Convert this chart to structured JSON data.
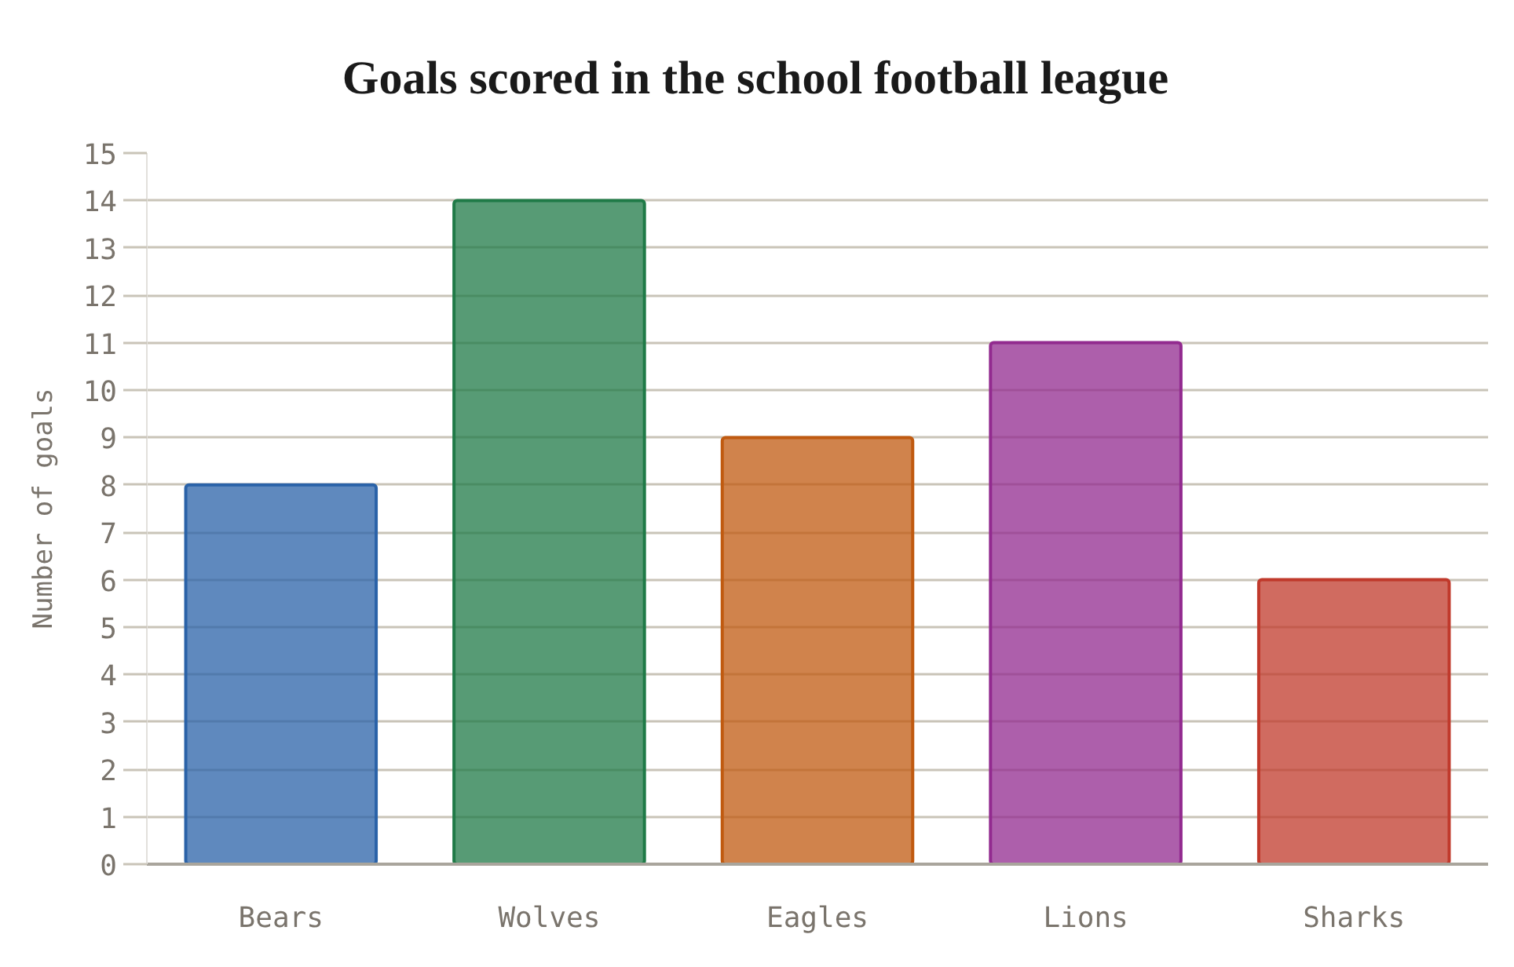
{
  "chart_data": {
    "type": "bar",
    "title": "Goals scored in the school football league",
    "ylabel": "Number of goals",
    "categories": [
      "Bears",
      "Wolves",
      "Eagles",
      "Lions",
      "Sharks"
    ],
    "values": [
      8,
      14,
      9,
      11,
      6
    ],
    "colors": [
      "#2a62a8",
      "#1f7a47",
      "#c05a10",
      "#922a8f",
      "#c0392b"
    ],
    "ylim": [
      0,
      15
    ],
    "yticks": [
      0,
      1,
      2,
      3,
      4,
      5,
      6,
      7,
      8,
      9,
      10,
      11,
      12,
      13,
      14,
      15
    ],
    "grid": "y"
  }
}
